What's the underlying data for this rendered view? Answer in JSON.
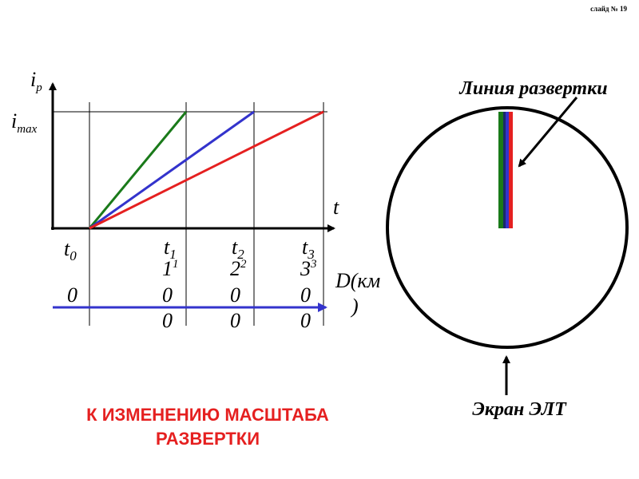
{
  "slide_number": "слайд № 19",
  "graph": {
    "y_axis": {
      "symbol": "i",
      "subscript": "p"
    },
    "y_max": {
      "symbol": "i",
      "subscript": "max"
    },
    "x_axis": {
      "symbol": "t"
    },
    "time_labels": [
      {
        "symbol": "t",
        "subscript": "0",
        "lines": [
          "0"
        ]
      },
      {
        "symbol": "t",
        "subscript": "1",
        "digit": "1",
        "superscript": "1",
        "lines": [
          "0",
          "0"
        ]
      },
      {
        "symbol": "t",
        "subscript": "2",
        "digit": "2",
        "superscript": "2",
        "lines": [
          "0",
          "0"
        ]
      },
      {
        "symbol": "t",
        "subscript": "3",
        "digit": "3",
        "superscript": "3",
        "lines": [
          "0",
          "0"
        ]
      }
    ],
    "distance_label": [
      "D(км",
      ")"
    ]
  },
  "screen": {
    "sweep_line_label": "Линия развертки",
    "screen_label": "Экран ЭЛТ"
  },
  "caption": [
    "К ИЗМЕНЕНИЮ МАСШТАБА",
    "РАЗВЕРТКИ"
  ]
}
